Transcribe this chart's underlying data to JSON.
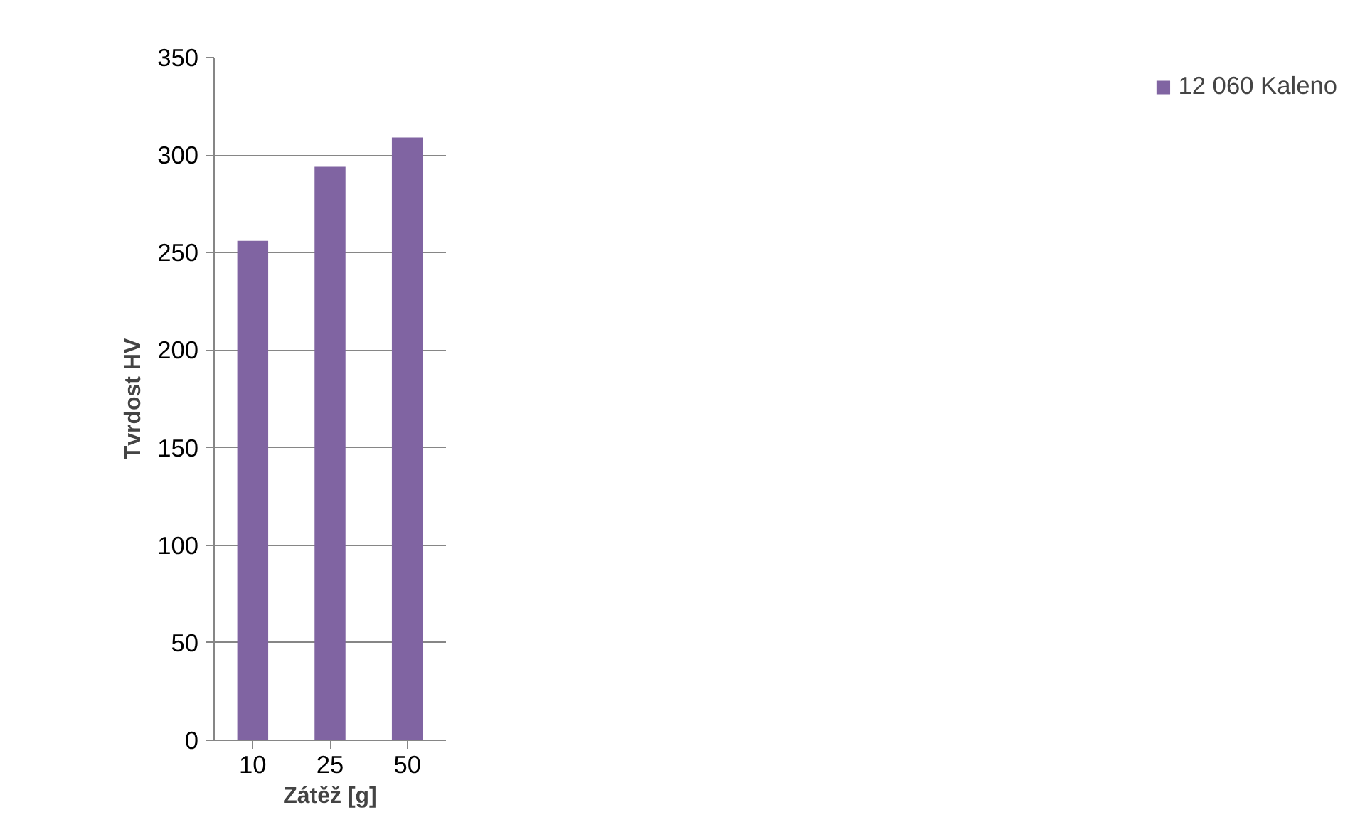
{
  "chart_data": {
    "type": "bar",
    "xlabel": "Zátěž [g]",
    "ylabel": "Tvrdost HV",
    "categories": [
      "10",
      "25",
      "50"
    ],
    "series": [
      {
        "name": "12 060 Kaleno",
        "color": "#8064a2",
        "values": [
          256,
          294,
          309
        ]
      }
    ],
    "ylim": [
      0,
      350
    ],
    "yticks": [
      0,
      50,
      100,
      150,
      200,
      250,
      300,
      350
    ],
    "grid": "y",
    "legend": "right"
  }
}
